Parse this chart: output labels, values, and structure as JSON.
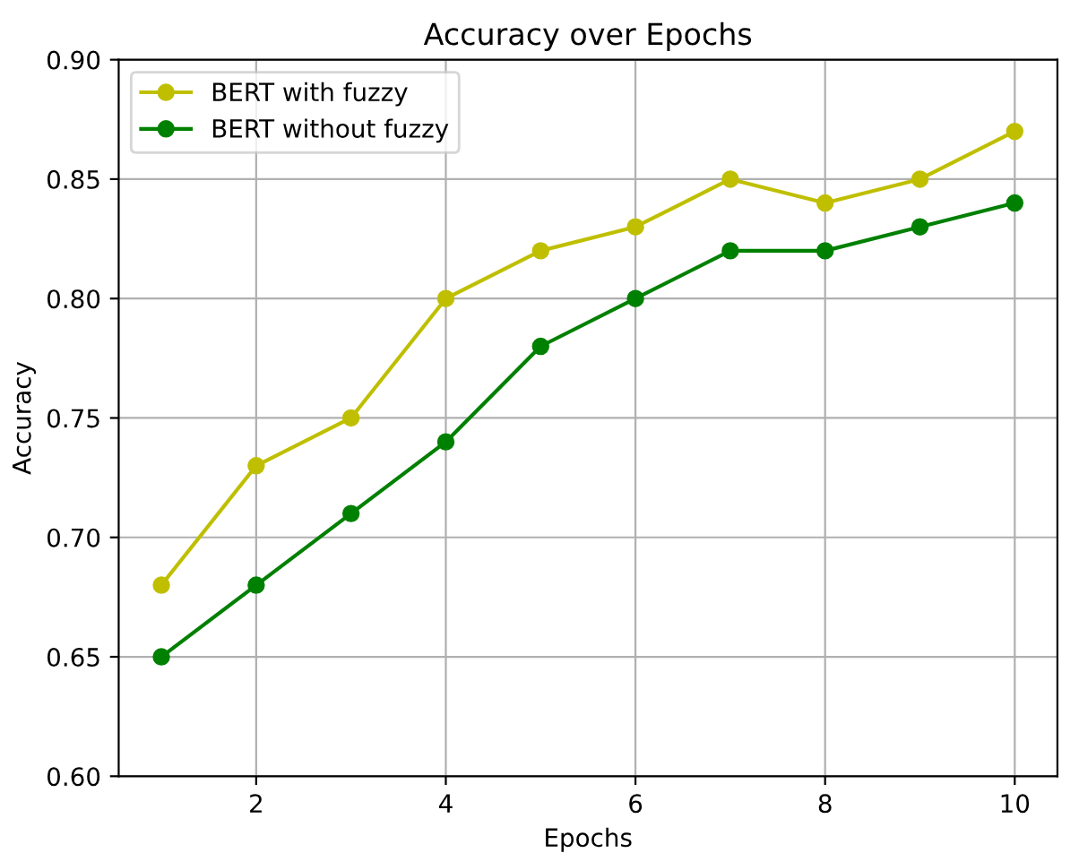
{
  "chart_data": {
    "type": "line",
    "title": "Accuracy over Epochs",
    "xlabel": "Epochs",
    "ylabel": "Accuracy",
    "x": [
      1,
      2,
      3,
      4,
      5,
      6,
      7,
      8,
      9,
      10
    ],
    "series": [
      {
        "name": "BERT with fuzzy",
        "color": "#bfbf00",
        "values": [
          0.68,
          0.73,
          0.75,
          0.8,
          0.82,
          0.83,
          0.85,
          0.84,
          0.85,
          0.87
        ]
      },
      {
        "name": "BERT without fuzzy",
        "color": "#008000",
        "values": [
          0.65,
          0.68,
          0.71,
          0.74,
          0.78,
          0.8,
          0.82,
          0.82,
          0.83,
          0.84
        ]
      }
    ],
    "xlim": [
      0.55,
      10.45
    ],
    "xticks": [
      2,
      4,
      6,
      8,
      10
    ],
    "ylim": [
      0.6,
      0.9
    ],
    "yticks": [
      {
        "value": 0.6,
        "label": "0.60"
      },
      {
        "value": 0.65,
        "label": "0.65"
      },
      {
        "value": 0.7,
        "label": "0.70"
      },
      {
        "value": 0.75,
        "label": "0.75"
      },
      {
        "value": 0.8,
        "label": "0.80"
      },
      {
        "value": 0.85,
        "label": "0.85"
      },
      {
        "value": 0.9,
        "label": "0.90"
      }
    ],
    "grid": true,
    "legend": "top left",
    "marker": "circle",
    "line_style": "solid"
  }
}
